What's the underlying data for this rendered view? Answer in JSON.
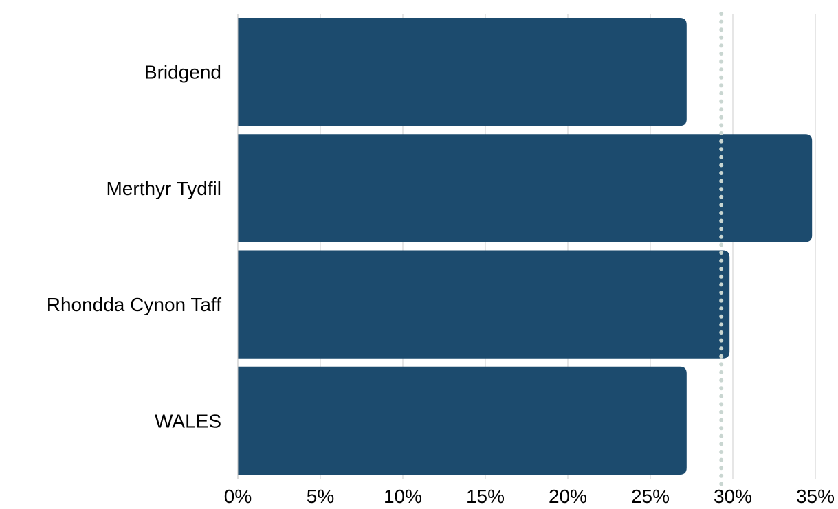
{
  "chart_data": {
    "type": "bar",
    "orientation": "horizontal",
    "title": "",
    "xlabel": "",
    "ylabel": "",
    "categories": [
      "Bridgend",
      "Merthyr Tydfil",
      "Rhondda Cynon Taff",
      "WALES"
    ],
    "values": [
      27.2,
      34.8,
      29.8,
      27.2
    ],
    "xlim": [
      0,
      35
    ],
    "xticks": [
      0,
      5,
      10,
      15,
      20,
      25,
      30,
      35
    ],
    "xtick_labels": [
      "0%",
      "5%",
      "10%",
      "15%",
      "20%",
      "25%",
      "30%",
      "35%"
    ],
    "reference_line": {
      "value": 29.3,
      "style": "dotted",
      "color": "#c9d6d1"
    },
    "grid": "vertical",
    "legend": "none",
    "colors": {
      "bar": "#1c4b6e",
      "grid": "#cccccc",
      "axis": "#bbbbbb"
    }
  }
}
